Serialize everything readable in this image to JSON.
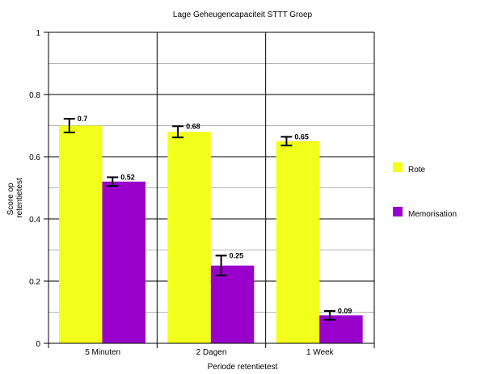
{
  "chart_data": {
    "type": "bar",
    "title": "Lage Geheugencapaciteit STTT Groep",
    "xlabel": "Periode retentietest",
    "ylabel_lines": [
      "Score op",
      "retentietest"
    ],
    "categories": [
      "5 Minuten",
      "2 Dagen",
      "1 Week"
    ],
    "ylim": [
      0,
      1
    ],
    "yticks": [
      "0",
      "0.2",
      "0.4",
      "0.6",
      "0.8",
      "1"
    ],
    "ytick_values": [
      0,
      0.2,
      0.4,
      0.6,
      0.8,
      1
    ],
    "minor_grid_values": [
      0.1,
      0.3,
      0.5,
      0.7,
      0.9
    ],
    "grid": true,
    "legend_position": "right",
    "series": [
      {
        "name": "Rote",
        "color": "#f2ff1a",
        "values": [
          0.7,
          0.68,
          0.65
        ],
        "labels": [
          "0.7",
          "0.68",
          "0.65"
        ],
        "error": [
          0.022,
          0.018,
          0.014
        ]
      },
      {
        "name": "Memorisation",
        "color": "#9900cc",
        "values": [
          0.52,
          0.25,
          0.09
        ],
        "labels": [
          "0.52",
          "0.25",
          "0.09"
        ],
        "error": [
          0.014,
          0.032,
          0.014
        ]
      }
    ]
  }
}
